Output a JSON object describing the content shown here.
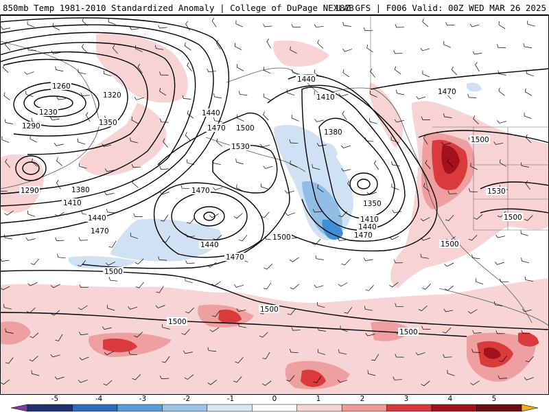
{
  "header": {
    "title_left": "850mb Temp 1981-2010 Standardized Anomaly | College of DuPage NEXLAB",
    "title_right": "18Z GFS | F006 Valid: 00Z WED MAR 26 2025"
  },
  "colorbar": {
    "labels": [
      "-5",
      "-4",
      "-3",
      "-2",
      "-1",
      "0",
      "1",
      "2",
      "3",
      "4",
      "5"
    ],
    "colors": [
      "#7b3f9c",
      "#23306e",
      "#2e6ab8",
      "#5b9bd8",
      "#9dc3e6",
      "#d7e6f3",
      "#ffffff",
      "#f6d5d5",
      "#ec9a9a",
      "#d9383a",
      "#a5101a",
      "#6b0d13",
      "#f2b01e"
    ]
  },
  "contours": {
    "height_labels": [
      "1260",
      "1230",
      "1290",
      "1320",
      "1350",
      "1290",
      "1380",
      "1410",
      "1440",
      "1470",
      "1440",
      "1470",
      "1500",
      "1530",
      "1470",
      "1440",
      "1500",
      "1470",
      "1500",
      "1500",
      "1500",
      "1500",
      "1440",
      "1410",
      "1380",
      "1350",
      "1410",
      "1440",
      "1470",
      "1470",
      "1500",
      "1530",
      "1500",
      "1500"
    ]
  },
  "palette": {
    "light_red": "#f7d3d3",
    "mid_red": "#ee9f9f",
    "red": "#d93a3c",
    "dark_red": "#a3121c",
    "light_blue": "#cfe1f2",
    "mid_blue": "#92bde4",
    "blue": "#3f8fd6"
  }
}
